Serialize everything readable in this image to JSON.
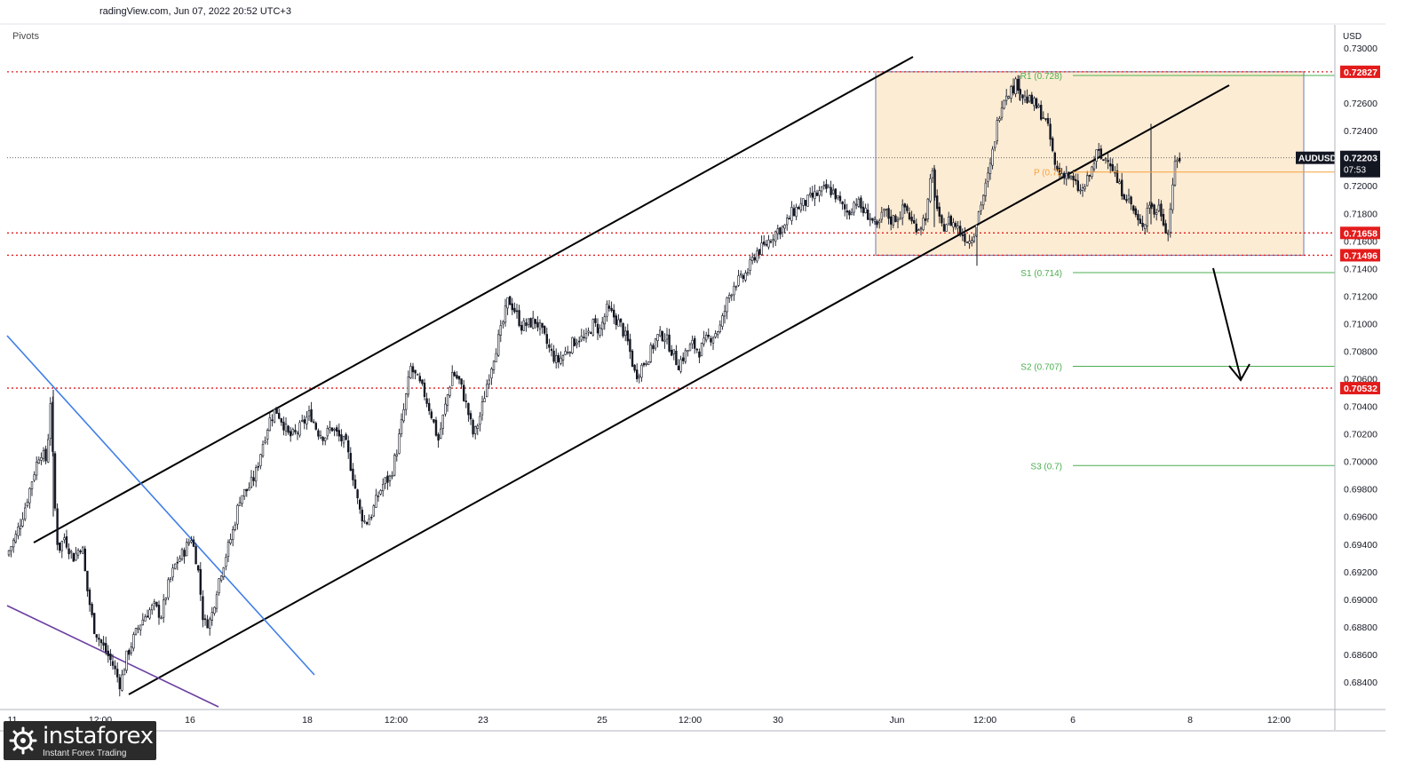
{
  "header": {
    "source_text": "radingView.com, Jun 07, 2022 20:52 UTC+3",
    "indicator": "Pivots"
  },
  "watermark": {
    "brand": "instaforex",
    "tagline": "Instant Forex Trading"
  },
  "colors": {
    "bull": "#26a69a",
    "bear": "#ef5350",
    "candle": "#131722",
    "range_fill": "#fde9cc",
    "pivot": "#f7a13a",
    "support": "#4caf50",
    "red_level": "#e31b1b",
    "trendline_blue": "#3f7ee8",
    "trendline_purple": "#6b3fa0"
  },
  "chart_data": {
    "type": "candlestick",
    "symbol": "AUDUSD",
    "currency": "USD",
    "ylim": [
      0.682,
      0.731
    ],
    "y_ticks": [
      "0.73000",
      "0.72600",
      "0.72400",
      "0.72000",
      "0.71800",
      "0.71600",
      "0.71400",
      "0.71200",
      "0.71000",
      "0.70800",
      "0.70600",
      "0.70400",
      "0.70200",
      "0.70000",
      "0.69800",
      "0.69600",
      "0.69400",
      "0.69200",
      "0.69000",
      "0.68800",
      "0.68600",
      "0.68400"
    ],
    "x_ticks": [
      "11",
      "12:00",
      "16",
      "18",
      "12:00",
      "23",
      "25",
      "12:00",
      "30",
      "Jun",
      "12:00",
      "6",
      "8",
      "12:00"
    ],
    "last_price": {
      "value": 0.72203,
      "label": "0.72203",
      "symbol": "AUDUSD",
      "countdown": "07:53"
    },
    "price_levels": [
      {
        "value": 0.72827,
        "label": "0.72827"
      },
      {
        "value": 0.71658,
        "label": "0.71658"
      },
      {
        "value": 0.71496,
        "label": "0.71496"
      },
      {
        "value": 0.70532,
        "label": "0.70532"
      }
    ],
    "pivots": [
      {
        "name": "R1",
        "label": "R1 (0.728)",
        "value": 0.728
      },
      {
        "name": "P",
        "label": "P (0.72",
        "value": 0.721
      },
      {
        "name": "S1",
        "label": "S1 (0.714)",
        "value": 0.7137
      },
      {
        "name": "S2",
        "label": "S2 (0.707)",
        "value": 0.7069
      },
      {
        "name": "S3",
        "label": "S3 (0.7)",
        "value": 0.6997
      }
    ],
    "range_box": {
      "top": 0.72827,
      "bottom": 0.71496
    },
    "ohlc_path": [
      [
        0,
        0.694
      ],
      [
        10,
        0.6932
      ],
      [
        20,
        0.6945
      ],
      [
        30,
        0.6965
      ],
      [
        40,
        0.699
      ],
      [
        48,
        0.7008
      ],
      [
        55,
        0.7
      ],
      [
        60,
        0.705
      ],
      [
        63,
        0.698
      ],
      [
        68,
        0.6935
      ],
      [
        75,
        0.6945
      ],
      [
        85,
        0.693
      ],
      [
        95,
        0.694
      ],
      [
        100,
        0.691
      ],
      [
        108,
        0.688
      ],
      [
        115,
        0.687
      ],
      [
        122,
        0.6862
      ],
      [
        130,
        0.6852
      ],
      [
        138,
        0.6838
      ],
      [
        145,
        0.6858
      ],
      [
        152,
        0.687
      ],
      [
        160,
        0.6882
      ],
      [
        168,
        0.689
      ],
      [
        176,
        0.6895
      ],
      [
        184,
        0.6888
      ],
      [
        192,
        0.691
      ],
      [
        200,
        0.6925
      ],
      [
        210,
        0.6935
      ],
      [
        218,
        0.6945
      ],
      [
        225,
        0.6925
      ],
      [
        232,
        0.6882
      ],
      [
        240,
        0.6885
      ],
      [
        248,
        0.6912
      ],
      [
        256,
        0.693
      ],
      [
        265,
        0.695
      ],
      [
        273,
        0.6975
      ],
      [
        282,
        0.698
      ],
      [
        290,
        0.699
      ],
      [
        298,
        0.7012
      ],
      [
        306,
        0.703
      ],
      [
        313,
        0.7038
      ],
      [
        320,
        0.703
      ],
      [
        328,
        0.7018
      ],
      [
        336,
        0.702
      ],
      [
        344,
        0.7028
      ],
      [
        352,
        0.7035
      ],
      [
        360,
        0.7022
      ],
      [
        368,
        0.7018
      ],
      [
        376,
        0.7025
      ],
      [
        384,
        0.7018
      ],
      [
        392,
        0.7012
      ],
      [
        400,
        0.699
      ],
      [
        407,
        0.6965
      ],
      [
        414,
        0.6955
      ],
      [
        421,
        0.6962
      ],
      [
        428,
        0.6975
      ],
      [
        435,
        0.6985
      ],
      [
        442,
        0.6988
      ],
      [
        450,
        0.701
      ],
      [
        458,
        0.704
      ],
      [
        465,
        0.7068
      ],
      [
        472,
        0.706
      ],
      [
        480,
        0.705
      ],
      [
        488,
        0.7035
      ],
      [
        496,
        0.7015
      ],
      [
        504,
        0.704
      ],
      [
        512,
        0.7065
      ],
      [
        520,
        0.7058
      ],
      [
        528,
        0.704
      ],
      [
        536,
        0.7018
      ],
      [
        544,
        0.7035
      ],
      [
        552,
        0.706
      ],
      [
        560,
        0.708
      ],
      [
        568,
        0.7098
      ],
      [
        575,
        0.7118
      ],
      [
        582,
        0.711
      ],
      [
        590,
        0.7098
      ],
      [
        598,
        0.71
      ],
      [
        606,
        0.7102
      ],
      [
        614,
        0.7092
      ],
      [
        622,
        0.708
      ],
      [
        630,
        0.7072
      ],
      [
        638,
        0.7078
      ],
      [
        646,
        0.7085
      ],
      [
        654,
        0.709
      ],
      [
        662,
        0.7088
      ],
      [
        670,
        0.71
      ],
      [
        678,
        0.7095
      ],
      [
        686,
        0.711
      ],
      [
        694,
        0.7105
      ],
      [
        702,
        0.7098
      ],
      [
        710,
        0.7085
      ],
      [
        718,
        0.7062
      ],
      [
        726,
        0.707
      ],
      [
        734,
        0.7078
      ],
      [
        742,
        0.709
      ],
      [
        750,
        0.7092
      ],
      [
        758,
        0.7082
      ],
      [
        766,
        0.707
      ],
      [
        774,
        0.7078
      ],
      [
        782,
        0.7085
      ],
      [
        790,
        0.708
      ],
      [
        798,
        0.7088
      ],
      [
        806,
        0.7092
      ],
      [
        814,
        0.7098
      ],
      [
        822,
        0.7118
      ],
      [
        830,
        0.713
      ],
      [
        838,
        0.7132
      ],
      [
        846,
        0.714
      ],
      [
        854,
        0.7152
      ],
      [
        862,
        0.7155
      ],
      [
        870,
        0.7162
      ],
      [
        878,
        0.7168
      ],
      [
        886,
        0.717
      ],
      [
        894,
        0.718
      ],
      [
        902,
        0.7185
      ],
      [
        910,
        0.7188
      ],
      [
        918,
        0.7192
      ],
      [
        926,
        0.7195
      ],
      [
        934,
        0.7198
      ],
      [
        942,
        0.7195
      ],
      [
        950,
        0.7185
      ],
      [
        958,
        0.718
      ],
      [
        966,
        0.719
      ],
      [
        974,
        0.7182
      ],
      [
        982,
        0.7178
      ],
      [
        990,
        0.7168
      ],
      [
        998,
        0.7182
      ],
      [
        1006,
        0.7175
      ],
      [
        1014,
        0.7178
      ],
      [
        1022,
        0.7185
      ],
      [
        1030,
        0.7172
      ],
      [
        1038,
        0.717
      ],
      [
        1046,
        0.718
      ],
      [
        1052,
        0.7212
      ],
      [
        1056,
        0.719
      ],
      [
        1062,
        0.7168
      ],
      [
        1070,
        0.7175
      ],
      [
        1078,
        0.7172
      ],
      [
        1086,
        0.7165
      ],
      [
        1094,
        0.716
      ],
      [
        1100,
        0.7168
      ],
      [
        1106,
        0.7185
      ],
      [
        1112,
        0.7198
      ],
      [
        1118,
        0.7215
      ],
      [
        1124,
        0.724
      ],
      [
        1130,
        0.726
      ],
      [
        1136,
        0.7268
      ],
      [
        1142,
        0.727
      ],
      [
        1148,
        0.7275
      ],
      [
        1154,
        0.7265
      ],
      [
        1160,
        0.7262
      ],
      [
        1166,
        0.726
      ],
      [
        1172,
        0.7255
      ],
      [
        1178,
        0.725
      ],
      [
        1184,
        0.7238
      ],
      [
        1190,
        0.7215
      ],
      [
        1196,
        0.7208
      ],
      [
        1202,
        0.721
      ],
      [
        1208,
        0.7205
      ],
      [
        1214,
        0.72
      ],
      [
        1220,
        0.7195
      ],
      [
        1226,
        0.7202
      ],
      [
        1232,
        0.7212
      ],
      [
        1238,
        0.7225
      ],
      [
        1244,
        0.7218
      ],
      [
        1250,
        0.7222
      ],
      [
        1256,
        0.7212
      ],
      [
        1262,
        0.72
      ],
      [
        1268,
        0.7195
      ],
      [
        1274,
        0.719
      ],
      [
        1280,
        0.718
      ],
      [
        1286,
        0.717
      ],
      [
        1292,
        0.7175
      ],
      [
        1296,
        0.719
      ],
      [
        1302,
        0.718
      ],
      [
        1308,
        0.7185
      ],
      [
        1314,
        0.7172
      ],
      [
        1318,
        0.7165
      ],
      [
        1322,
        0.7198
      ],
      [
        1326,
        0.7215
      ],
      [
        1330,
        0.722
      ]
    ]
  }
}
